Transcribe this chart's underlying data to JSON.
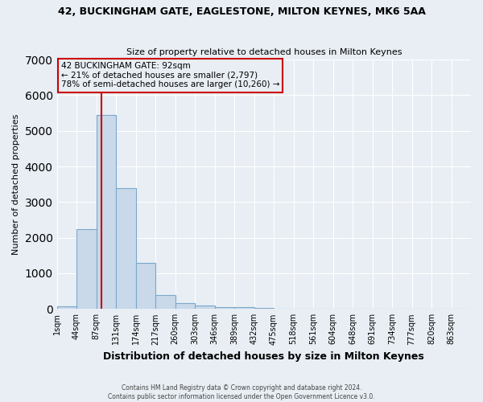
{
  "title1": "42, BUCKINGHAM GATE, EAGLESTONE, MILTON KEYNES, MK6 5AA",
  "title2": "Size of property relative to detached houses in Milton Keynes",
  "xlabel": "Distribution of detached houses by size in Milton Keynes",
  "ylabel": "Number of detached properties",
  "bar_labels": [
    "1sqm",
    "44sqm",
    "87sqm",
    "131sqm",
    "174sqm",
    "217sqm",
    "260sqm",
    "303sqm",
    "346sqm",
    "389sqm",
    "432sqm",
    "475sqm",
    "518sqm",
    "561sqm",
    "604sqm",
    "648sqm",
    "691sqm",
    "734sqm",
    "777sqm",
    "820sqm",
    "863sqm"
  ],
  "bar_values": [
    70,
    2250,
    5450,
    3400,
    1300,
    400,
    160,
    90,
    60,
    55,
    40,
    8,
    3,
    2,
    2,
    1,
    1,
    1,
    0,
    0,
    0
  ],
  "bar_color": "#c9d9ea",
  "bar_edge_color": "#7aa8cc",
  "ylim": [
    0,
    7000
  ],
  "property_line_index": 2,
  "property_line_color": "#cc0000",
  "annotation_text": "42 BUCKINGHAM GATE: 92sqm\n← 21% of detached houses are smaller (2,797)\n78% of semi-detached houses are larger (10,260) →",
  "annotation_box_color": "#cc0000",
  "footnote1": "Contains HM Land Registry data © Crown copyright and database right 2024.",
  "footnote2": "Contains public sector information licensed under the Open Government Licence v3.0.",
  "background_color": "#e8eef4",
  "grid_color": "#ffffff",
  "title1_fontsize": 9,
  "title2_fontsize": 8,
  "ylabel_fontsize": 8,
  "xlabel_fontsize": 9,
  "tick_fontsize": 7,
  "footnote_fontsize": 5.5
}
